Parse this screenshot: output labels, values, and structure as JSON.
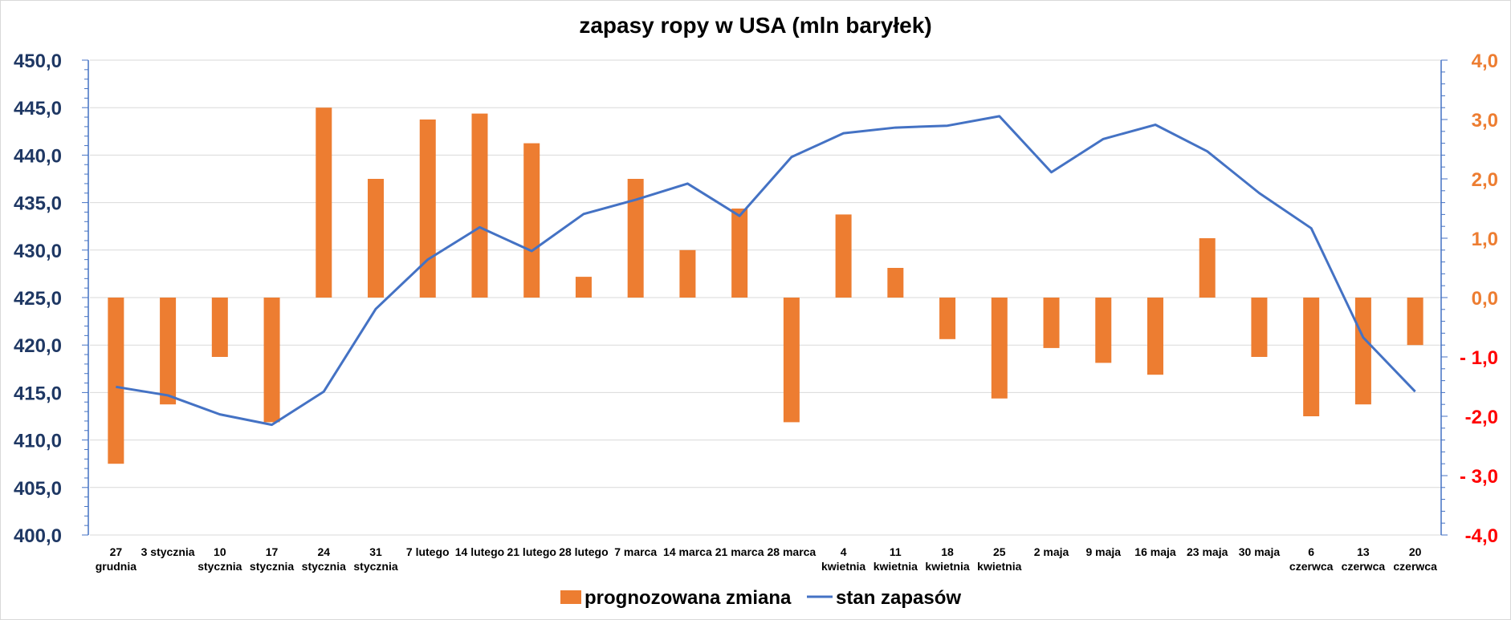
{
  "chart_data": {
    "type": "bar+line",
    "title": "zapasy ropy w USA (mln baryłek)",
    "categories": [
      [
        "27",
        "grudnia"
      ],
      [
        "3 stycznia"
      ],
      [
        "10",
        "stycznia"
      ],
      [
        "17",
        "stycznia"
      ],
      [
        "24",
        "stycznia"
      ],
      [
        "31",
        "stycznia"
      ],
      [
        "7 lutego"
      ],
      [
        "14 lutego"
      ],
      [
        "21 lutego"
      ],
      [
        "28 lutego"
      ],
      [
        "7 marca"
      ],
      [
        "14 marca"
      ],
      [
        "21 marca"
      ],
      [
        "28 marca"
      ],
      [
        "4",
        "kwietnia"
      ],
      [
        "11",
        "kwietnia"
      ],
      [
        "18",
        "kwietnia"
      ],
      [
        "25",
        "kwietnia"
      ],
      [
        "2 maja"
      ],
      [
        "9 maja"
      ],
      [
        "16 maja"
      ],
      [
        "23 maja"
      ],
      [
        "30 maja"
      ],
      [
        "6",
        "czerwca"
      ],
      [
        "13",
        "czerwca"
      ],
      [
        "20",
        "czerwca"
      ]
    ],
    "series": [
      {
        "name": "prognozowana zmiana",
        "type": "bar",
        "axis": "right",
        "color": "#ed7d31",
        "values": [
          -2.8,
          -1.8,
          -1.0,
          -2.1,
          3.2,
          2.0,
          3.0,
          3.1,
          2.6,
          0.35,
          2.0,
          0.8,
          1.5,
          -2.1,
          1.4,
          0.5,
          -0.7,
          -1.7,
          -0.85,
          -1.1,
          -1.3,
          1.0,
          -1.0,
          -2.0,
          -1.8,
          -0.8
        ]
      },
      {
        "name": "stan zapasów",
        "type": "line",
        "axis": "left",
        "color": "#4472c4",
        "values": [
          415.6,
          414.7,
          412.7,
          411.6,
          415.1,
          423.8,
          429.0,
          432.4,
          429.9,
          433.8,
          435.3,
          437.0,
          433.6,
          439.8,
          442.3,
          442.9,
          443.1,
          444.1,
          438.2,
          441.7,
          443.2,
          440.4,
          436.0,
          432.3,
          420.8,
          415.1
        ]
      }
    ],
    "y_left": {
      "min": 400,
      "max": 450,
      "step": 5,
      "ticks": [
        "450,0",
        "445,0",
        "440,0",
        "435,0",
        "430,0",
        "425,0",
        "420,0",
        "415,0",
        "410,0",
        "405,0",
        "400,0"
      ]
    },
    "y_right": {
      "min": -4,
      "max": 4,
      "step": 1,
      "ticks": [
        "4,0",
        "3,0",
        "2,0",
        "1,0",
        "0,0",
        "- 1,0",
        "-2,0",
        "- 3,0",
        "-4,0"
      ]
    },
    "grid": true,
    "legend_position": "bottom",
    "colors": {
      "bar": "#ed7d31",
      "line": "#4472c4",
      "left_axis_text": "#1f3864",
      "right_axis_positive": "#ed7d31",
      "right_axis_negative": "#ff0000",
      "gridline": "#d9d9d9"
    }
  }
}
